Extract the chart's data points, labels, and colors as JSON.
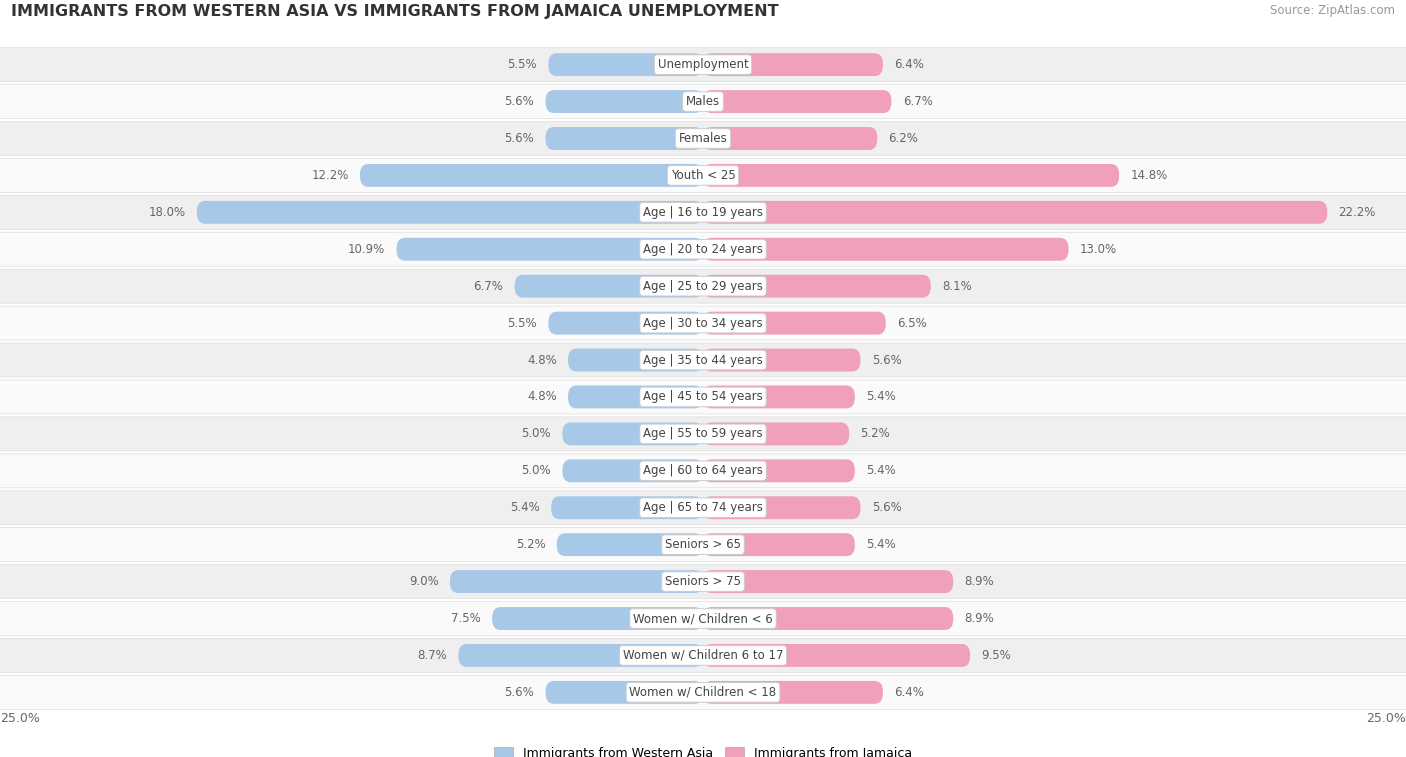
{
  "title": "IMMIGRANTS FROM WESTERN ASIA VS IMMIGRANTS FROM JAMAICA UNEMPLOYMENT",
  "source": "Source: ZipAtlas.com",
  "categories": [
    "Unemployment",
    "Males",
    "Females",
    "Youth < 25",
    "Age | 16 to 19 years",
    "Age | 20 to 24 years",
    "Age | 25 to 29 years",
    "Age | 30 to 34 years",
    "Age | 35 to 44 years",
    "Age | 45 to 54 years",
    "Age | 55 to 59 years",
    "Age | 60 to 64 years",
    "Age | 65 to 74 years",
    "Seniors > 65",
    "Seniors > 75",
    "Women w/ Children < 6",
    "Women w/ Children 6 to 17",
    "Women w/ Children < 18"
  ],
  "western_asia": [
    5.5,
    5.6,
    5.6,
    12.2,
    18.0,
    10.9,
    6.7,
    5.5,
    4.8,
    4.8,
    5.0,
    5.0,
    5.4,
    5.2,
    9.0,
    7.5,
    8.7,
    5.6
  ],
  "jamaica": [
    6.4,
    6.7,
    6.2,
    14.8,
    22.2,
    13.0,
    8.1,
    6.5,
    5.6,
    5.4,
    5.2,
    5.4,
    5.6,
    5.4,
    8.9,
    8.9,
    9.5,
    6.4
  ],
  "western_asia_color": "#a8c8e8",
  "jamaica_color": "#f0a0b8",
  "row_color_odd": "#efefef",
  "row_color_even": "#fafafa",
  "axis_limit": 25.0,
  "label_color": "#666666",
  "title_color": "#333333",
  "legend_western": "Immigrants from Western Asia",
  "legend_jamaica": "Immigrants from Jamaica"
}
